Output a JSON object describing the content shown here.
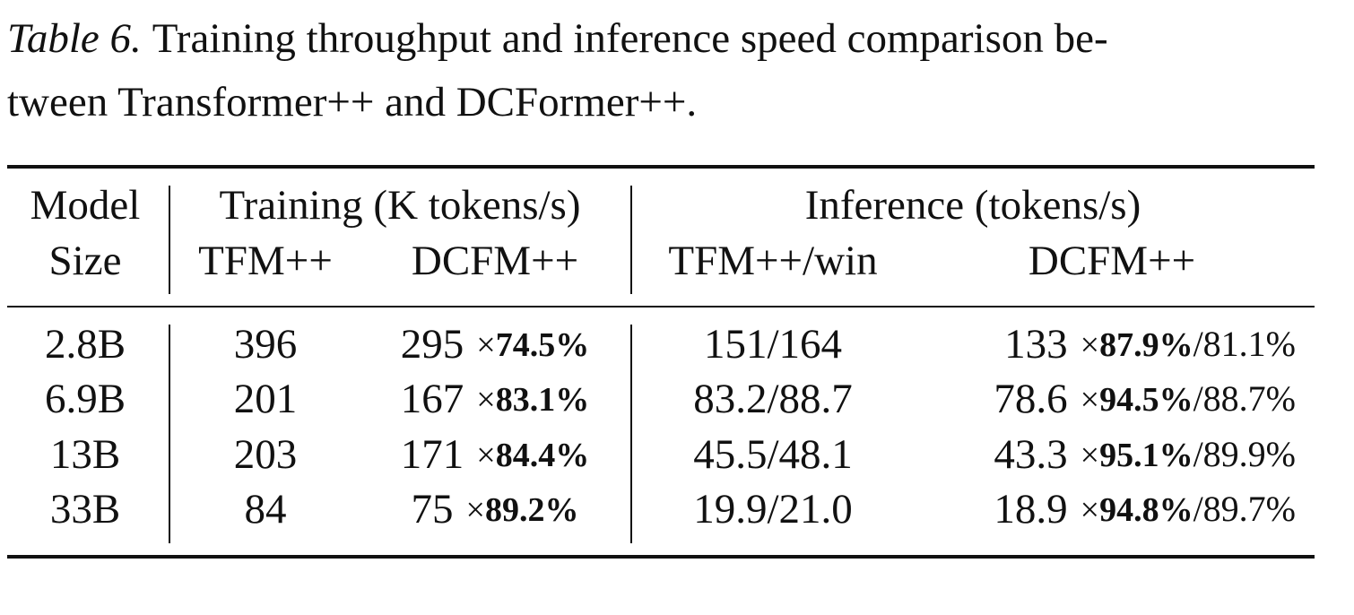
{
  "caption": {
    "label": "Table 6.",
    "lines": [
      "Training throughput and inference speed comparison be-",
      "tween Transformer++ and DCFormer++."
    ]
  },
  "table": {
    "group_header": [
      "Model",
      "Training (K tokens/s)",
      "Inference (tokens/s)"
    ],
    "sub_header": [
      "Size",
      "TFM++",
      "DCFM++",
      "TFM++/win",
      "DCFM++"
    ],
    "rows": [
      [
        {
          "value": "2.8B"
        },
        {
          "value": "396"
        },
        {
          "value": "295",
          "times": "×",
          "ratio": "74.5%"
        },
        {
          "value": "151/164"
        },
        {
          "value": "133",
          "times": "×",
          "ratio": "87.9%",
          "rest": "/81.1%"
        }
      ],
      [
        {
          "value": "6.9B"
        },
        {
          "value": "201"
        },
        {
          "value": "167",
          "times": "×",
          "ratio": "83.1%"
        },
        {
          "value": "83.2/88.7"
        },
        {
          "value": "78.6",
          "times": "×",
          "ratio": "94.5%",
          "rest": "/88.7%"
        }
      ],
      [
        {
          "value": "13B"
        },
        {
          "value": "203"
        },
        {
          "value": "171",
          "times": "×",
          "ratio": "84.4%"
        },
        {
          "value": "45.5/48.1"
        },
        {
          "value": "43.3",
          "times": "×",
          "ratio": "95.1%",
          "rest": "/89.9%"
        }
      ],
      [
        {
          "value": "33B"
        },
        {
          "value": "84"
        },
        {
          "value": "75",
          "times": "×",
          "ratio": "89.2%"
        },
        {
          "value": "19.9/21.0"
        },
        {
          "value": "18.9",
          "times": "×",
          "ratio": "94.8%",
          "rest": "/89.7%"
        }
      ]
    ]
  }
}
